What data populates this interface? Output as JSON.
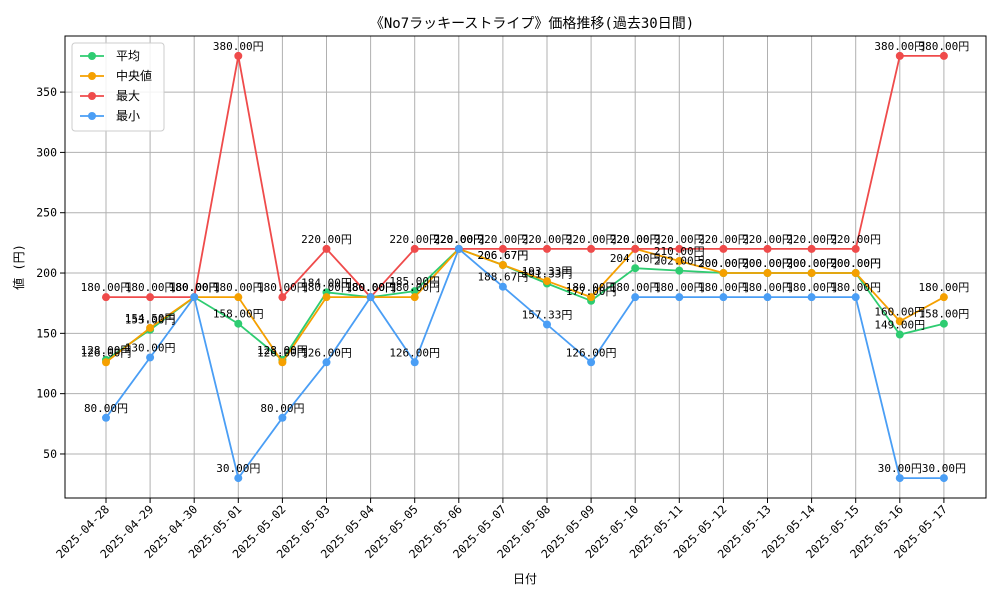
{
  "chart_data": {
    "type": "line",
    "title": "《No7ラッキーストライプ》価格推移(過去30日間)",
    "xlabel": "日付",
    "ylabel": "値 (円)",
    "ylim": [
      13.5,
      396.5
    ],
    "yticks": [
      50,
      100,
      150,
      200,
      250,
      300,
      350
    ],
    "grid": true,
    "legend_position": "top-left",
    "categories": [
      "2025-04-28",
      "2025-04-29",
      "2025-04-30",
      "2025-05-01",
      "2025-05-02",
      "2025-05-03",
      "2025-05-04",
      "2025-05-05",
      "2025-05-06",
      "2025-05-07",
      "2025-05-08",
      "2025-05-09",
      "2025-05-10",
      "2025-05-11",
      "2025-05-12",
      "2025-05-13",
      "2025-05-14",
      "2025-05-15",
      "2025-05-16",
      "2025-05-17"
    ],
    "label_suffix": "円",
    "series": [
      {
        "name": "平均",
        "color": "#2ecc71",
        "values": [
          128.0,
          153.0,
          180.0,
          158.0,
          128.0,
          184.0,
          180.0,
          185.0,
          220.0,
          206.67,
          191.33,
          177.0,
          204.0,
          202.0,
          200.0,
          200.0,
          200.0,
          200.0,
          149.0,
          158.0
        ]
      },
      {
        "name": "中央値",
        "color": "#f5a000",
        "values": [
          126.0,
          154.5,
          180.0,
          180.0,
          126.0,
          180.0,
          180.0,
          180.0,
          220.0,
          206.67,
          193.33,
          180.0,
          220.0,
          210.0,
          200.0,
          200.0,
          200.0,
          200.0,
          160.0,
          180.0
        ]
      },
      {
        "name": "最大",
        "color": "#ef4b4b",
        "values": [
          180.0,
          180.0,
          180.0,
          380.0,
          180.0,
          220.0,
          180.0,
          220.0,
          220.0,
          220.0,
          220.0,
          220.0,
          220.0,
          220.0,
          220.0,
          220.0,
          220.0,
          220.0,
          380.0,
          380.0
        ]
      },
      {
        "name": "最小",
        "color": "#4a9ef5",
        "values": [
          80.0,
          130.0,
          180.0,
          30.0,
          80.0,
          126.0,
          180.0,
          126.0,
          220.0,
          188.67,
          157.33,
          126.0,
          180.0,
          180.0,
          180.0,
          180.0,
          180.0,
          180.0,
          30.0,
          30.0
        ]
      }
    ]
  }
}
